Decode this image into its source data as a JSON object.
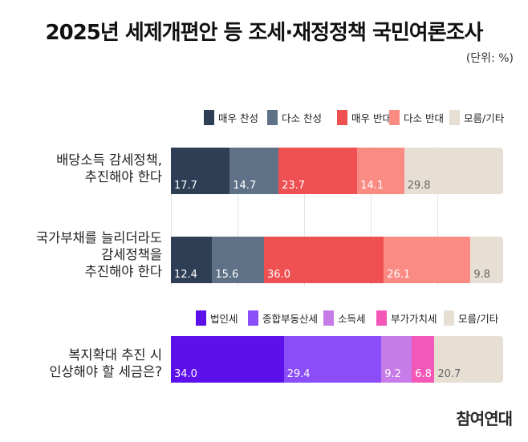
{
  "title": "2025년 세제개편안 등 조세·재정정책 국민여론조사",
  "unit": "(단위: %)",
  "logo": "참여연대",
  "chart_data": [
    {
      "type": "bar",
      "orientation": "horizontal",
      "stacked": true,
      "normalized": true,
      "legend_placement": "top-right",
      "categories": [
        "배당소득 감세정책,\n추진해야 한다",
        "국가부채를 늘리더라도\n감세정책을\n추진해야 한다"
      ],
      "series": [
        {
          "name": "매우 찬성",
          "color": "#2e3e55",
          "values": [
            17.7,
            12.4
          ]
        },
        {
          "name": "다소 찬성",
          "color": "#5f7186",
          "values": [
            14.7,
            15.6
          ]
        },
        {
          "name": "매우 반대",
          "color": "#ef5052",
          "values": [
            23.7,
            36.0
          ]
        },
        {
          "name": "다소 반대",
          "color": "#fa8b83",
          "values": [
            14.1,
            26.1
          ]
        },
        {
          "name": "모름/기타",
          "color": "#e7dfd4",
          "values": [
            29.8,
            9.8
          ]
        }
      ]
    },
    {
      "type": "bar",
      "orientation": "horizontal",
      "stacked": true,
      "normalized": true,
      "legend_placement": "top-right",
      "categories": [
        "복지확대 추진 시\n인상해야 할 세금은?"
      ],
      "series": [
        {
          "name": "법인세",
          "color": "#5c10ea",
          "values": [
            34.0
          ]
        },
        {
          "name": "종합부동산세",
          "color": "#8b4df7",
          "values": [
            29.4
          ]
        },
        {
          "name": "소득세",
          "color": "#c67be9",
          "values": [
            9.2
          ]
        },
        {
          "name": "부가가치세",
          "color": "#f358b9",
          "values": [
            6.8
          ]
        },
        {
          "name": "모름/기타",
          "color": "#e7dfd4",
          "values": [
            20.7
          ]
        }
      ]
    }
  ]
}
